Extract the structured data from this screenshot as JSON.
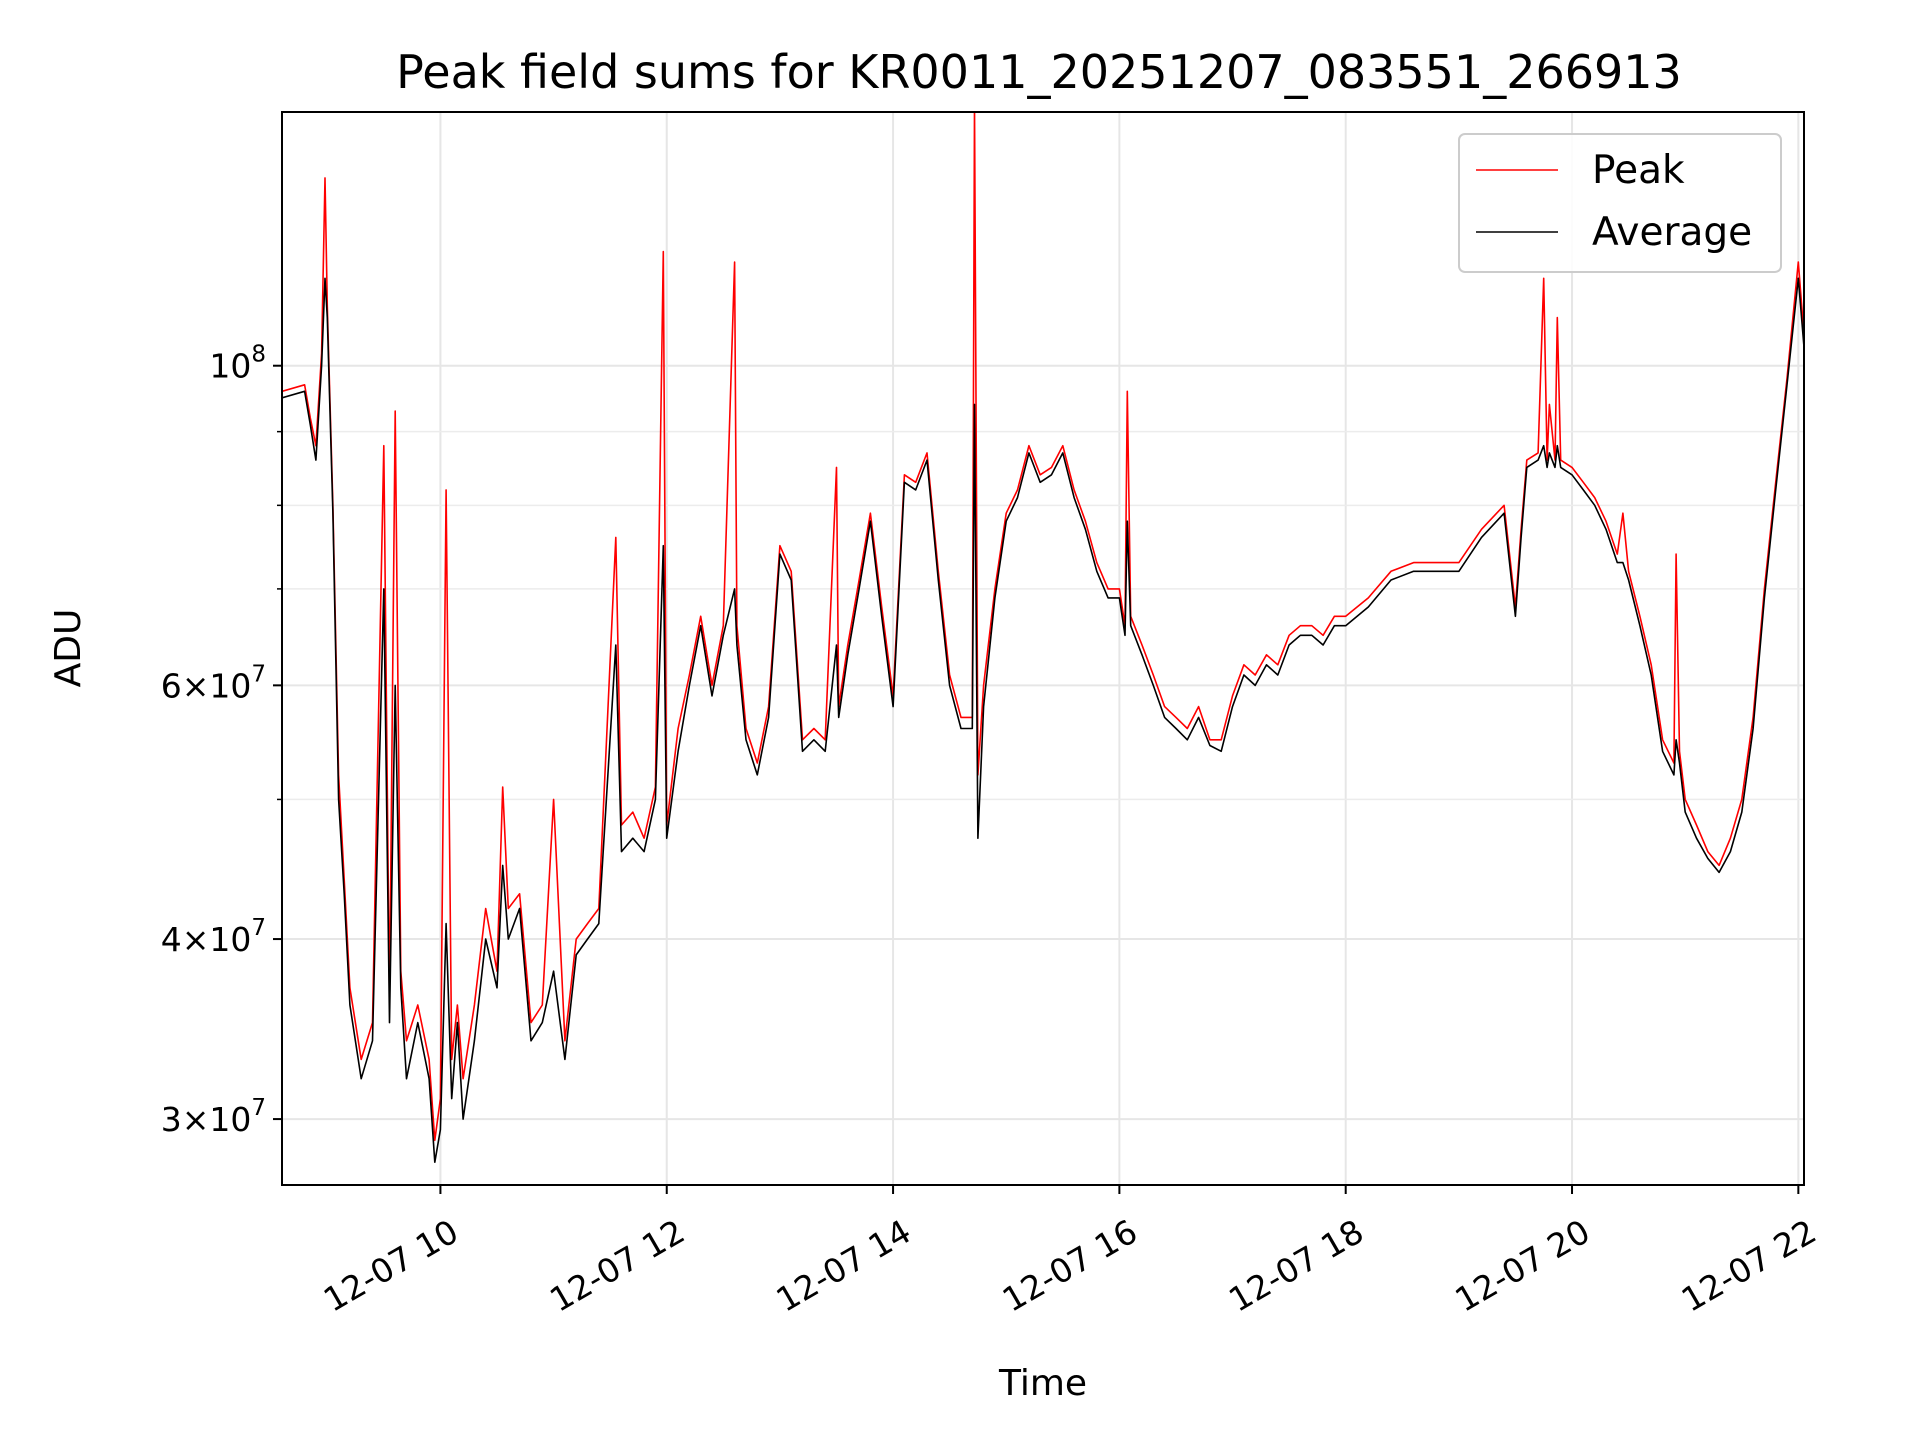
{
  "chart_data": {
    "type": "line",
    "title": "Peak field sums for KR0011_20251207_083551_266913",
    "xlabel": "Time",
    "ylabel": "ADU",
    "yscale": "log",
    "xlim": [
      8.6,
      22.05
    ],
    "ylim": [
      27000000,
      150000000
    ],
    "grid": true,
    "legend_position": "top-right",
    "x_ticks": [
      {
        "value": 10,
        "label": "12-07 10"
      },
      {
        "value": 12,
        "label": "12-07 12"
      },
      {
        "value": 14,
        "label": "12-07 14"
      },
      {
        "value": 16,
        "label": "12-07 16"
      },
      {
        "value": 18,
        "label": "12-07 18"
      },
      {
        "value": 20,
        "label": "12-07 20"
      },
      {
        "value": 22,
        "label": "12-07 22"
      }
    ],
    "y_ticks": [
      {
        "value": 30000000,
        "mantissa": "3",
        "exp": "7"
      },
      {
        "value": 40000000,
        "mantissa": "4",
        "exp": "7"
      },
      {
        "value": 60000000,
        "mantissa": "6",
        "exp": "7"
      },
      {
        "value": 100000000,
        "mantissa": "",
        "exp": "8"
      }
    ],
    "series": [
      {
        "name": "Peak",
        "color": "#ff0000",
        "x": [
          8.6,
          8.8,
          8.85,
          8.9,
          8.95,
          8.98,
          9.0,
          9.05,
          9.1,
          9.15,
          9.2,
          9.3,
          9.4,
          9.5,
          9.55,
          9.6,
          9.65,
          9.7,
          9.8,
          9.9,
          9.95,
          10.0,
          10.05,
          10.1,
          10.15,
          10.2,
          10.3,
          10.4,
          10.5,
          10.55,
          10.6,
          10.7,
          10.8,
          10.9,
          11.0,
          11.1,
          11.2,
          11.3,
          11.4,
          11.55,
          11.6,
          11.7,
          11.8,
          11.9,
          11.97,
          12.0,
          12.1,
          12.2,
          12.3,
          12.4,
          12.5,
          12.6,
          12.62,
          12.7,
          12.8,
          12.9,
          13.0,
          13.1,
          13.2,
          13.3,
          13.4,
          13.5,
          13.52,
          13.6,
          13.7,
          13.8,
          13.9,
          14.0,
          14.1,
          14.2,
          14.3,
          14.4,
          14.5,
          14.6,
          14.7,
          14.72,
          14.75,
          14.8,
          14.9,
          15.0,
          15.1,
          15.2,
          15.3,
          15.4,
          15.5,
          15.6,
          15.7,
          15.8,
          15.9,
          16.0,
          16.05,
          16.07,
          16.1,
          16.2,
          16.3,
          16.4,
          16.5,
          16.6,
          16.7,
          16.8,
          16.9,
          17.0,
          17.1,
          17.2,
          17.3,
          17.4,
          17.5,
          17.6,
          17.7,
          17.8,
          17.9,
          18.0,
          18.2,
          18.4,
          18.6,
          18.8,
          19.0,
          19.2,
          19.4,
          19.5,
          19.55,
          19.6,
          19.7,
          19.75,
          19.78,
          19.8,
          19.85,
          19.87,
          19.9,
          20.0,
          20.1,
          20.2,
          20.3,
          20.4,
          20.45,
          20.5,
          20.6,
          20.7,
          20.8,
          20.9,
          20.92,
          20.95,
          21.0,
          21.1,
          21.2,
          21.3,
          21.4,
          21.5,
          21.6,
          21.7,
          21.8,
          21.9,
          22.0,
          22.05
        ],
        "y": [
          96000000,
          97000000,
          92000000,
          88000000,
          102000000,
          135000000,
          110000000,
          80000000,
          52000000,
          44000000,
          37000000,
          33000000,
          35000000,
          88000000,
          36000000,
          93000000,
          38000000,
          34000000,
          36000000,
          33000000,
          29000000,
          31000000,
          82000000,
          33000000,
          36000000,
          32000000,
          36000000,
          42000000,
          38000000,
          51000000,
          42000000,
          43000000,
          35000000,
          36000000,
          50000000,
          34000000,
          40000000,
          41000000,
          42000000,
          76000000,
          48000000,
          49000000,
          47000000,
          51000000,
          120000000,
          48000000,
          56000000,
          61000000,
          67000000,
          60000000,
          66000000,
          118000000,
          66000000,
          56000000,
          53000000,
          58000000,
          75000000,
          72000000,
          55000000,
          56000000,
          55000000,
          85000000,
          58000000,
          64000000,
          71000000,
          79000000,
          68000000,
          59000000,
          84000000,
          83000000,
          87000000,
          72000000,
          61000000,
          57000000,
          57000000,
          152000000,
          52000000,
          60000000,
          70000000,
          79000000,
          82000000,
          88000000,
          84000000,
          85000000,
          88000000,
          82000000,
          78000000,
          73000000,
          70000000,
          70000000,
          66000000,
          96000000,
          67000000,
          64000000,
          61000000,
          58000000,
          57000000,
          56000000,
          58000000,
          55000000,
          55000000,
          59000000,
          62000000,
          61000000,
          63000000,
          62000000,
          65000000,
          66000000,
          66000000,
          65000000,
          67000000,
          67000000,
          69000000,
          72000000,
          73000000,
          73000000,
          73000000,
          77000000,
          80000000,
          68000000,
          77000000,
          86000000,
          87000000,
          115000000,
          86000000,
          94000000,
          86000000,
          108000000,
          86000000,
          85000000,
          83000000,
          81000000,
          78000000,
          74000000,
          79000000,
          72000000,
          67000000,
          62000000,
          55000000,
          53000000,
          74000000,
          54000000,
          50000000,
          48000000,
          46000000,
          45000000,
          47000000,
          50000000,
          57000000,
          70000000,
          83000000,
          98000000,
          118000000,
          105000000
        ]
      },
      {
        "name": "Average",
        "color": "#000000",
        "x": [
          8.6,
          8.8,
          8.85,
          8.9,
          8.95,
          8.98,
          9.0,
          9.05,
          9.1,
          9.15,
          9.2,
          9.3,
          9.4,
          9.5,
          9.55,
          9.6,
          9.65,
          9.7,
          9.8,
          9.9,
          9.95,
          10.0,
          10.05,
          10.1,
          10.15,
          10.2,
          10.3,
          10.4,
          10.5,
          10.55,
          10.6,
          10.7,
          10.8,
          10.9,
          11.0,
          11.1,
          11.2,
          11.3,
          11.4,
          11.55,
          11.6,
          11.7,
          11.8,
          11.9,
          11.97,
          12.0,
          12.1,
          12.2,
          12.3,
          12.4,
          12.5,
          12.6,
          12.62,
          12.7,
          12.8,
          12.9,
          13.0,
          13.1,
          13.2,
          13.3,
          13.4,
          13.5,
          13.52,
          13.6,
          13.7,
          13.8,
          13.9,
          14.0,
          14.1,
          14.2,
          14.3,
          14.4,
          14.5,
          14.6,
          14.7,
          14.72,
          14.75,
          14.8,
          14.9,
          15.0,
          15.1,
          15.2,
          15.3,
          15.4,
          15.5,
          15.6,
          15.7,
          15.8,
          15.9,
          16.0,
          16.05,
          16.07,
          16.1,
          16.2,
          16.3,
          16.4,
          16.5,
          16.6,
          16.7,
          16.8,
          16.9,
          17.0,
          17.1,
          17.2,
          17.3,
          17.4,
          17.5,
          17.6,
          17.7,
          17.8,
          17.9,
          18.0,
          18.2,
          18.4,
          18.6,
          18.8,
          19.0,
          19.2,
          19.4,
          19.5,
          19.55,
          19.6,
          19.7,
          19.75,
          19.78,
          19.8,
          19.85,
          19.87,
          19.9,
          20.0,
          20.1,
          20.2,
          20.3,
          20.4,
          20.45,
          20.5,
          20.6,
          20.7,
          20.8,
          20.9,
          20.92,
          20.95,
          21.0,
          21.1,
          21.2,
          21.3,
          21.4,
          21.5,
          21.6,
          21.7,
          21.8,
          21.9,
          22.0,
          22.05
        ],
        "y": [
          95000000,
          96000000,
          91000000,
          86000000,
          100000000,
          115000000,
          108000000,
          79000000,
          50000000,
          43000000,
          36000000,
          32000000,
          34000000,
          70000000,
          35000000,
          60000000,
          37000000,
          32000000,
          35000000,
          32000000,
          28000000,
          29500000,
          41000000,
          31000000,
          35000000,
          30000000,
          34000000,
          40000000,
          37000000,
          45000000,
          40000000,
          42000000,
          34000000,
          35000000,
          38000000,
          33000000,
          39000000,
          40000000,
          41000000,
          64000000,
          46000000,
          47000000,
          46000000,
          50000000,
          75000000,
          47000000,
          54000000,
          60000000,
          66000000,
          59000000,
          65000000,
          70000000,
          64000000,
          55000000,
          52000000,
          57000000,
          74000000,
          71000000,
          54000000,
          55000000,
          54000000,
          64000000,
          57000000,
          63000000,
          70000000,
          78000000,
          67000000,
          58000000,
          83000000,
          82000000,
          86000000,
          71000000,
          60000000,
          56000000,
          56000000,
          94000000,
          47000000,
          58000000,
          69000000,
          78000000,
          81000000,
          87000000,
          83000000,
          84000000,
          87000000,
          81000000,
          77000000,
          72000000,
          69000000,
          69000000,
          65000000,
          78000000,
          66000000,
          63000000,
          60000000,
          57000000,
          56000000,
          55000000,
          57000000,
          54500000,
          54000000,
          58000000,
          61000000,
          60000000,
          62000000,
          61000000,
          64000000,
          65000000,
          65000000,
          64000000,
          66000000,
          66000000,
          68000000,
          71000000,
          72000000,
          72000000,
          72000000,
          76000000,
          79000000,
          67000000,
          76000000,
          85000000,
          86000000,
          88000000,
          85000000,
          87000000,
          85000000,
          88000000,
          85000000,
          84000000,
          82000000,
          80000000,
          77000000,
          73000000,
          73000000,
          71000000,
          66000000,
          61000000,
          54000000,
          52000000,
          55000000,
          53000000,
          49000000,
          47000000,
          45500000,
          44500000,
          46000000,
          49000000,
          56000000,
          69000000,
          82000000,
          97000000,
          115000000,
          103000000
        ]
      }
    ]
  }
}
